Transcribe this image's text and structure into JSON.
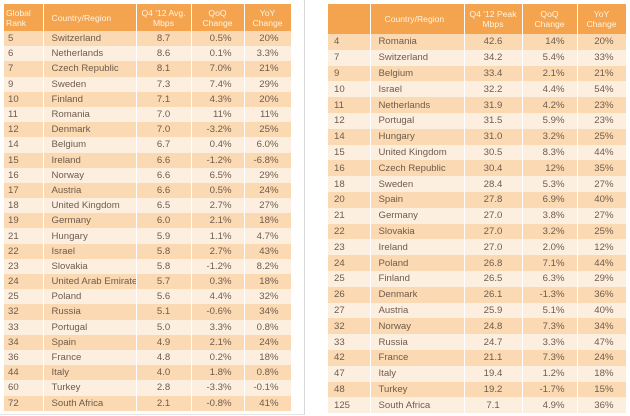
{
  "avg_table": {
    "headers": [
      "Global Rank",
      "Country/Region",
      "Q4 '12 Avg. Mbps",
      "QoQ Change",
      "YoY Change"
    ],
    "rows": [
      [
        "5",
        "Switzerland",
        "8.7",
        "0.5%",
        "20%"
      ],
      [
        "6",
        "Netherlands",
        "8.6",
        "0.1%",
        "3.3%"
      ],
      [
        "7",
        "Czech Republic",
        "8.1",
        "7.0%",
        "21%"
      ],
      [
        "9",
        "Sweden",
        "7.3",
        "7.4%",
        "29%"
      ],
      [
        "10",
        "Finland",
        "7.1",
        "4.3%",
        "20%"
      ],
      [
        "11",
        "Romania",
        "7.0",
        "11%",
        "11%"
      ],
      [
        "12",
        "Denmark",
        "7.0",
        "-3.2%",
        "25%"
      ],
      [
        "14",
        "Belgium",
        "6.7",
        "0.4%",
        "6.0%"
      ],
      [
        "15",
        "Ireland",
        "6.6",
        "-1.2%",
        "-6.8%"
      ],
      [
        "16",
        "Norway",
        "6.6",
        "6.5%",
        "29%"
      ],
      [
        "17",
        "Austria",
        "6.6",
        "0.5%",
        "24%"
      ],
      [
        "18",
        "United Kingdom",
        "6.5",
        "2.7%",
        "27%"
      ],
      [
        "19",
        "Germany",
        "6.0",
        "2.1%",
        "18%"
      ],
      [
        "21",
        "Hungary",
        "5.9",
        "1.1%",
        "4.7%"
      ],
      [
        "22",
        "Israel",
        "5.8",
        "2.7%",
        "43%"
      ],
      [
        "23",
        "Slovakia",
        "5.8",
        "-1.2%",
        "8.2%"
      ],
      [
        "24",
        "United Arab Emirates",
        "5.7",
        "0.3%",
        "18%"
      ],
      [
        "25",
        "Poland",
        "5.6",
        "4.4%",
        "32%"
      ],
      [
        "32",
        "Russia",
        "5.1",
        "-0.6%",
        "34%"
      ],
      [
        "33",
        "Portugal",
        "5.0",
        "3.3%",
        "0.8%"
      ],
      [
        "34",
        "Spain",
        "4.9",
        "2.1%",
        "24%"
      ],
      [
        "36",
        "France",
        "4.8",
        "0.2%",
        "18%"
      ],
      [
        "44",
        "Italy",
        "4.0",
        "1.8%",
        "0.8%"
      ],
      [
        "60",
        "Turkey",
        "2.8",
        "-3.3%",
        "-0.1%"
      ],
      [
        "72",
        "South Africa",
        "2.1",
        "-0.8%",
        "41%"
      ]
    ]
  },
  "peak_table": {
    "headers": [
      "",
      "Country/Region",
      "Q4 '12 Peak Mbps",
      "QoQ Change",
      "YoY Change"
    ],
    "rows": [
      [
        "4",
        "Romania",
        "42.6",
        "14%",
        "20%"
      ],
      [
        "7",
        "Switzerland",
        "34.2",
        "5.4%",
        "33%"
      ],
      [
        "9",
        "Belgium",
        "33.4",
        "2.1%",
        "21%"
      ],
      [
        "10",
        "Israel",
        "32.2",
        "4.4%",
        "54%"
      ],
      [
        "11",
        "Netherlands",
        "31.9",
        "4.2%",
        "23%"
      ],
      [
        "12",
        "Portugal",
        "31.5",
        "5.9%",
        "23%"
      ],
      [
        "14",
        "Hungary",
        "31.0",
        "3.2%",
        "25%"
      ],
      [
        "15",
        "United Kingdom",
        "30.5",
        "8.3%",
        "44%"
      ],
      [
        "16",
        "Czech Republic",
        "30.4",
        "12%",
        "35%"
      ],
      [
        "18",
        "Sweden",
        "28.4",
        "5.3%",
        "27%"
      ],
      [
        "20",
        "Spain",
        "27.8",
        "6.9%",
        "40%"
      ],
      [
        "21",
        "Germany",
        "27.0",
        "3.8%",
        "27%"
      ],
      [
        "22",
        "Slovakia",
        "27.0",
        "3.2%",
        "25%"
      ],
      [
        "23",
        "Ireland",
        "27.0",
        "2.0%",
        "12%"
      ],
      [
        "24",
        "Poland",
        "26.8",
        "7.1%",
        "44%"
      ],
      [
        "25",
        "Finland",
        "26.5",
        "6.3%",
        "29%"
      ],
      [
        "26",
        "Denmark",
        "26.1",
        "-1.3%",
        "36%"
      ],
      [
        "27",
        "Austria",
        "25.9",
        "5.1%",
        "40%"
      ],
      [
        "32",
        "Norway",
        "24.8",
        "7.3%",
        "34%"
      ],
      [
        "33",
        "Russia",
        "24.7",
        "3.3%",
        "47%"
      ],
      [
        "42",
        "France",
        "21.1",
        "7.3%",
        "24%"
      ],
      [
        "47",
        "Italy",
        "19.4",
        "1.2%",
        "18%"
      ],
      [
        "48",
        "Turkey",
        "19.2",
        "-1.7%",
        "15%"
      ],
      [
        "125",
        "South Africa",
        "7.1",
        "4.9%",
        "36%"
      ]
    ]
  },
  "colors": {
    "header": "#f4a44e",
    "row_dark": "#fbd9b2",
    "row_light": "#fdefe0",
    "text": "#6e5c4c"
  }
}
